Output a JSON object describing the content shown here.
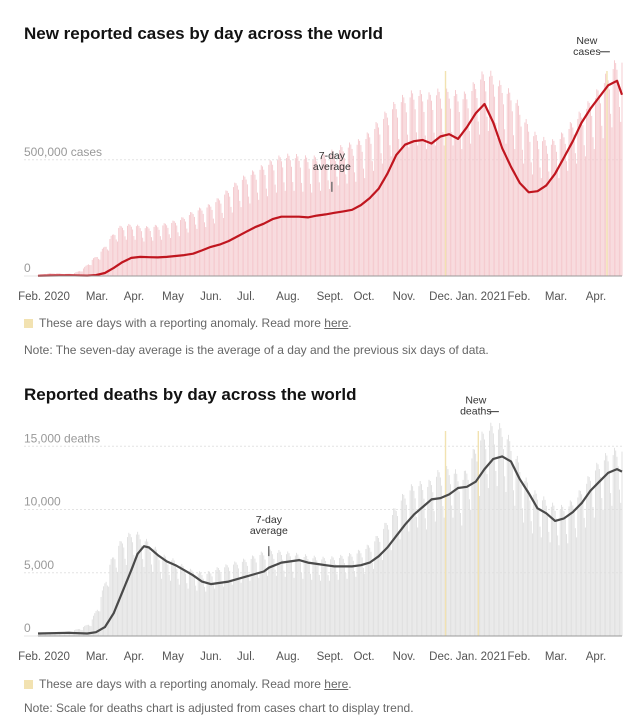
{
  "chart_data": [
    {
      "type": "bar",
      "title": "New reported cases by day across the world",
      "y_tick_labels": [
        "0",
        "500,000 cases"
      ],
      "y_ticks": [
        0,
        500000
      ],
      "ylim": [
        0,
        925000
      ],
      "x_tick_labels": [
        "Feb. 2020",
        "Mar.",
        "Apr.",
        "May",
        "Jun.",
        "Jul.",
        "Aug.",
        "Sept.",
        "Oct.",
        "Nov.",
        "Dec.",
        "Jan. 2021",
        "Feb.",
        "Mar.",
        "Apr."
      ],
      "grid": true,
      "bar_color": "#f4c6cb",
      "anomaly_color": "#f2e2b1",
      "line_color": "#c0161f",
      "series": [
        {
          "name": "New cases",
          "kind": "daily bars",
          "weeks": [
            "2020-01-22",
            "2020-01-29",
            "2020-02-05",
            "2020-02-12",
            "2020-02-19",
            "2020-02-26",
            "2020-03-04",
            "2020-03-11",
            "2020-03-18",
            "2020-03-25",
            "2020-04-01",
            "2020-04-08",
            "2020-04-15",
            "2020-04-22",
            "2020-04-29",
            "2020-05-06",
            "2020-05-13",
            "2020-05-20",
            "2020-05-27",
            "2020-06-03",
            "2020-06-10",
            "2020-06-17",
            "2020-06-24",
            "2020-07-01",
            "2020-07-08",
            "2020-07-15",
            "2020-07-22",
            "2020-07-29",
            "2020-08-05",
            "2020-08-12",
            "2020-08-19",
            "2020-08-26",
            "2020-09-02",
            "2020-09-09",
            "2020-09-16",
            "2020-09-23",
            "2020-09-30",
            "2020-10-07",
            "2020-10-14",
            "2020-10-21",
            "2020-10-28",
            "2020-11-04",
            "2020-11-11",
            "2020-11-18",
            "2020-11-25",
            "2020-12-02",
            "2020-12-09",
            "2020-12-16",
            "2020-12-23",
            "2020-12-30",
            "2021-01-06",
            "2021-01-13",
            "2021-01-20",
            "2021-01-27",
            "2021-02-03",
            "2021-02-10",
            "2021-02-17",
            "2021-02-24",
            "2021-03-03",
            "2021-03-10",
            "2021-03-17",
            "2021-03-24",
            "2021-03-31",
            "2021-04-07",
            "2021-04-14",
            "2021-04-21",
            "2021-04-28"
          ],
          "values": [
            5000,
            10000,
            12000,
            8000,
            10000,
            25000,
            60000,
            90000,
            140000,
            190000,
            200000,
            200000,
            190000,
            195000,
            200000,
            210000,
            220000,
            240000,
            260000,
            270000,
            290000,
            320000,
            350000,
            380000,
            400000,
            420000,
            440000,
            460000,
            470000,
            470000,
            465000,
            460000,
            470000,
            480000,
            500000,
            510000,
            520000,
            540000,
            580000,
            620000,
            660000,
            690000,
            710000,
            720000,
            700000,
            720000,
            720000,
            720000,
            700000,
            730000,
            780000,
            800000,
            760000,
            730000,
            700000,
            620000,
            560000,
            540000,
            520000,
            540000,
            580000,
            620000,
            660000,
            700000,
            760000,
            820000,
            850000
          ]
        },
        {
          "name": "7-day average",
          "kind": "line",
          "weeks": [
            "2020-01-22",
            "2020-02-01",
            "2020-02-15",
            "2020-03-01",
            "2020-03-08",
            "2020-03-15",
            "2020-03-22",
            "2020-03-29",
            "2020-04-05",
            "2020-04-12",
            "2020-04-19",
            "2020-04-26",
            "2020-05-03",
            "2020-05-10",
            "2020-05-17",
            "2020-05-24",
            "2020-05-31",
            "2020-06-07",
            "2020-06-14",
            "2020-06-21",
            "2020-06-28",
            "2020-07-05",
            "2020-07-12",
            "2020-07-19",
            "2020-07-26",
            "2020-08-02",
            "2020-08-09",
            "2020-08-16",
            "2020-08-23",
            "2020-08-30",
            "2020-09-06",
            "2020-09-13",
            "2020-09-20",
            "2020-09-27",
            "2020-10-04",
            "2020-10-11",
            "2020-10-18",
            "2020-10-25",
            "2020-11-01",
            "2020-11-08",
            "2020-11-15",
            "2020-11-22",
            "2020-11-29",
            "2020-12-06",
            "2020-12-13",
            "2020-12-20",
            "2020-12-27",
            "2021-01-03",
            "2021-01-10",
            "2021-01-17",
            "2021-01-24",
            "2021-01-31",
            "2021-02-07",
            "2021-02-14",
            "2021-02-21",
            "2021-02-28",
            "2021-03-07",
            "2021-03-14",
            "2021-03-21",
            "2021-03-28",
            "2021-04-04",
            "2021-04-11",
            "2021-04-18",
            "2021-04-25",
            "2021-04-29"
          ],
          "values": [
            1000,
            2000,
            3000,
            1500,
            4000,
            13000,
            35000,
            60000,
            78000,
            82000,
            81000,
            80000,
            82000,
            86000,
            90000,
            96000,
            110000,
            125000,
            135000,
            150000,
            170000,
            190000,
            210000,
            225000,
            245000,
            255000,
            255000,
            255000,
            252000,
            260000,
            265000,
            272000,
            278000,
            285000,
            305000,
            335000,
            375000,
            440000,
            520000,
            565000,
            580000,
            585000,
            570000,
            600000,
            610000,
            590000,
            640000,
            700000,
            740000,
            660000,
            550000,
            470000,
            400000,
            360000,
            365000,
            390000,
            440000,
            510000,
            580000,
            660000,
            720000,
            770000,
            820000,
            840000,
            780000
          ]
        }
      ],
      "annotations": [
        {
          "text": [
            "7-day",
            "average"
          ],
          "x": "2020-09-11",
          "y": 345000
        },
        {
          "text": [
            "New",
            "cases"
          ],
          "x": "2021-04-17",
          "y": 870000
        }
      ],
      "anomalies": [
        "2020-12-10",
        "2021-04-17"
      ]
    },
    {
      "type": "bar",
      "title": "Reported deaths by day across the world",
      "y_tick_labels": [
        "0",
        "5,000",
        "10,000",
        "15,000 deaths"
      ],
      "y_ticks": [
        0,
        5000,
        10000,
        15000
      ],
      "ylim": [
        0,
        17000
      ],
      "x_tick_labels": [
        "Feb. 2020",
        "Mar.",
        "Apr.",
        "May",
        "Jun.",
        "Jul.",
        "Aug.",
        "Sept.",
        "Oct.",
        "Nov.",
        "Dec.",
        "Jan. 2021",
        "Feb.",
        "Mar.",
        "Apr."
      ],
      "grid": true,
      "bar_color": "#dedede",
      "anomaly_color": "#f2e2b1",
      "line_color": "#4a4a4a",
      "series": [
        {
          "name": "New deaths",
          "kind": "daily bars",
          "weeks": [
            "2020-01-22",
            "2020-01-29",
            "2020-02-05",
            "2020-02-12",
            "2020-02-19",
            "2020-02-26",
            "2020-03-04",
            "2020-03-11",
            "2020-03-18",
            "2020-03-25",
            "2020-04-01",
            "2020-04-08",
            "2020-04-15",
            "2020-04-22",
            "2020-04-29",
            "2020-05-06",
            "2020-05-13",
            "2020-05-20",
            "2020-05-27",
            "2020-06-03",
            "2020-06-10",
            "2020-06-17",
            "2020-06-24",
            "2020-07-01",
            "2020-07-08",
            "2020-07-15",
            "2020-07-22",
            "2020-07-29",
            "2020-08-05",
            "2020-08-12",
            "2020-08-19",
            "2020-08-26",
            "2020-09-02",
            "2020-09-09",
            "2020-09-16",
            "2020-09-23",
            "2020-09-30",
            "2020-10-07",
            "2020-10-14",
            "2020-10-21",
            "2020-10-28",
            "2020-11-04",
            "2020-11-11",
            "2020-11-18",
            "2020-11-25",
            "2020-12-02",
            "2020-12-09",
            "2020-12-16",
            "2020-12-23",
            "2020-12-30",
            "2021-01-06",
            "2021-01-13",
            "2021-01-20",
            "2021-01-27",
            "2021-02-03",
            "2021-02-10",
            "2021-02-17",
            "2021-02-24",
            "2021-03-03",
            "2021-03-10",
            "2021-03-17",
            "2021-03-24",
            "2021-03-31",
            "2021-04-07",
            "2021-04-14",
            "2021-04-21",
            "2021-04-28"
          ],
          "values": [
            100,
            200,
            300,
            300,
            400,
            600,
            1000,
            2500,
            5000,
            6500,
            7200,
            7500,
            7000,
            6500,
            5800,
            5600,
            5200,
            4800,
            4600,
            4500,
            4800,
            5000,
            5200,
            5400,
            5600,
            5900,
            6100,
            6100,
            6000,
            5900,
            5800,
            5700,
            5600,
            5600,
            5700,
            5800,
            6000,
            6300,
            6800,
            7700,
            8700,
            9800,
            10600,
            11000,
            10800,
            11600,
            12000,
            12000,
            11200,
            12800,
            14200,
            15000,
            15200,
            14600,
            13200,
            11500,
            10400,
            10000,
            9500,
            9200,
            9400,
            10000,
            11000,
            12000,
            12800,
            13200,
            13500
          ]
        },
        {
          "name": "7-day average",
          "kind": "line",
          "weeks": [
            "2020-01-22",
            "2020-02-15",
            "2020-03-01",
            "2020-03-08",
            "2020-03-15",
            "2020-03-22",
            "2020-03-29",
            "2020-04-05",
            "2020-04-10",
            "2020-04-15",
            "2020-04-19",
            "2020-04-26",
            "2020-05-03",
            "2020-05-10",
            "2020-05-17",
            "2020-05-24",
            "2020-05-31",
            "2020-06-07",
            "2020-06-14",
            "2020-06-21",
            "2020-06-28",
            "2020-07-05",
            "2020-07-12",
            "2020-07-19",
            "2020-07-23",
            "2020-08-02",
            "2020-08-09",
            "2020-08-16",
            "2020-08-23",
            "2020-08-30",
            "2020-09-06",
            "2020-09-13",
            "2020-09-20",
            "2020-09-27",
            "2020-10-04",
            "2020-10-11",
            "2020-10-18",
            "2020-10-25",
            "2020-11-01",
            "2020-11-08",
            "2020-11-15",
            "2020-11-22",
            "2020-11-29",
            "2020-12-06",
            "2020-12-13",
            "2020-12-20",
            "2020-12-27",
            "2021-01-03",
            "2021-01-10",
            "2021-01-17",
            "2021-01-24",
            "2021-01-31",
            "2021-02-07",
            "2021-02-14",
            "2021-02-21",
            "2021-02-28",
            "2021-03-07",
            "2021-03-14",
            "2021-03-21",
            "2021-03-28",
            "2021-04-04",
            "2021-04-11",
            "2021-04-18",
            "2021-04-25",
            "2021-04-29"
          ],
          "values": [
            200,
            250,
            200,
            300,
            700,
            1800,
            3500,
            5200,
            6500,
            7100,
            7000,
            6400,
            5900,
            5600,
            5200,
            4800,
            4300,
            4100,
            4200,
            4300,
            4500,
            4700,
            4900,
            5100,
            5400,
            5800,
            5900,
            6000,
            5800,
            5700,
            5600,
            5500,
            5500,
            5500,
            5600,
            5800,
            6300,
            7000,
            7900,
            8800,
            9600,
            10200,
            10800,
            10900,
            11200,
            11700,
            11800,
            12200,
            13200,
            14000,
            14200,
            13800,
            12400,
            11300,
            10100,
            9700,
            9100,
            9300,
            9800,
            10500,
            11500,
            12200,
            12900,
            13200,
            13000
          ]
        }
      ],
      "annotations": [
        {
          "text": [
            "7-day",
            "average"
          ],
          "x": "2020-07-23",
          "y": 6000
        },
        {
          "text": [
            "New",
            "deaths"
          ],
          "x": "2021-01-19",
          "y": 16000
        }
      ],
      "anomalies": [
        "2020-12-10",
        "2021-01-05"
      ]
    }
  ],
  "chart1_legend": {
    "prefix": "These are days with a reporting anomaly. Read more ",
    "link": "here",
    "suffix": "."
  },
  "chart1_note": "Note: The seven-day average is the average of a day and the previous six days of data.",
  "chart2_legend": {
    "prefix": "These are days with a reporting anomaly. Read more ",
    "link": "here",
    "suffix": "."
  },
  "chart2_note": "Note: Scale for deaths chart is adjusted from cases chart to display trend."
}
